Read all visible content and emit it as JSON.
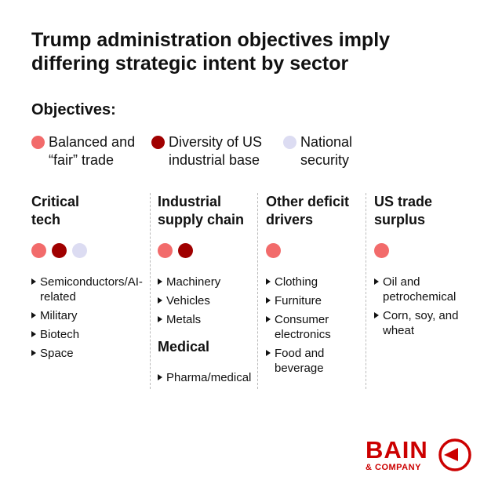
{
  "header": {
    "title": "Trump administration objectives imply differing strategic intent by sector"
  },
  "legend": {
    "title": "Objectives:",
    "items": [
      {
        "label": "Balanced and “fair” trade",
        "color": "#f26b6b"
      },
      {
        "label": "Diversity of US industrial base",
        "color": "#a00000"
      },
      {
        "label": "National security",
        "color": "#dcdcf2"
      }
    ]
  },
  "columns": [
    {
      "sections": [
        {
          "title": "Critical tech",
          "objectives": [
            0,
            1,
            2
          ],
          "items": [
            "Semiconductors/AI-related",
            "Military",
            "Biotech",
            "Space"
          ]
        }
      ]
    },
    {
      "sections": [
        {
          "title": "Industrial supply chain",
          "objectives": [
            0,
            1
          ],
          "items": [
            "Machinery",
            "Vehicles",
            "Metals"
          ]
        },
        {
          "title": "Medical",
          "items": [
            "Pharma/medical"
          ]
        }
      ]
    },
    {
      "sections": [
        {
          "title": "Other deficit drivers",
          "objectives": [
            0
          ],
          "items": [
            "Clothing",
            "Furniture",
            "Consumer electronics",
            "Food and beverage"
          ]
        }
      ]
    },
    {
      "sections": [
        {
          "title": "US trade surplus",
          "objectives": [
            0
          ],
          "items": [
            "Oil and petrochemical",
            "Corn, soy, and wheat"
          ]
        }
      ]
    }
  ],
  "logo": {
    "name": "BAIN",
    "sub": "& COMPANY"
  }
}
